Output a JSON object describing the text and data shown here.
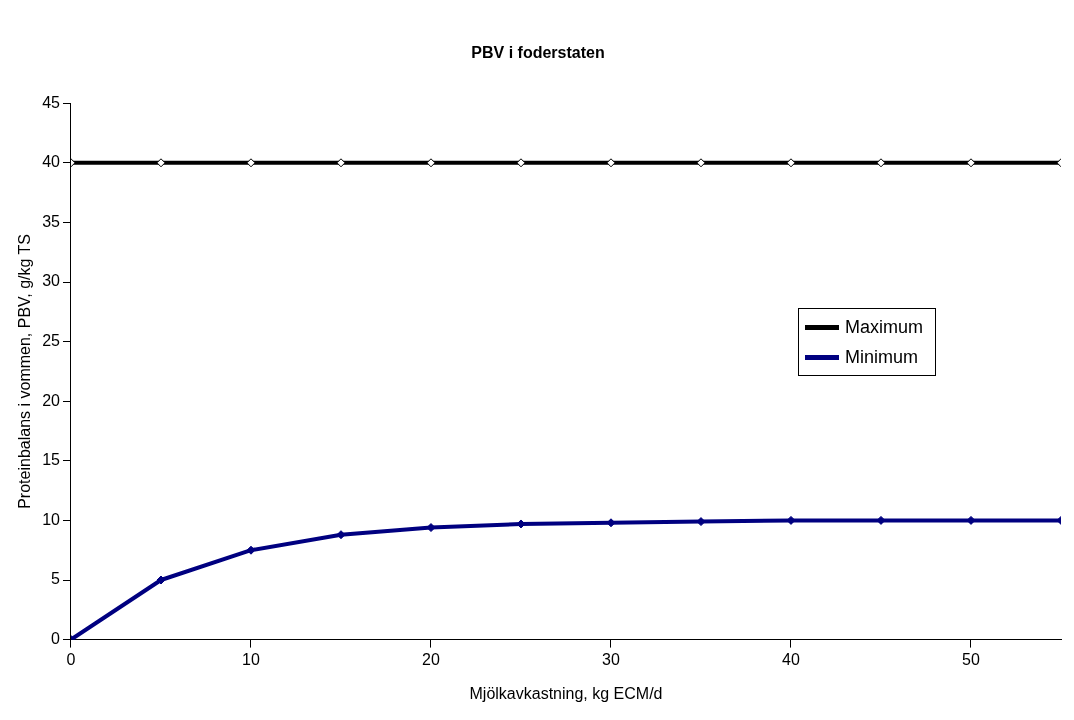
{
  "chart_data": {
    "type": "line",
    "title": "PBV i foderstaten",
    "xlabel": "Mjölkavkastning, kg ECM/d",
    "ylabel": "Proteinbalans i vommen, PBV, g/kg TS",
    "x": [
      0,
      5,
      10,
      15,
      20,
      25,
      30,
      35,
      40,
      45,
      50,
      55
    ],
    "series": [
      {
        "name": "Maximum",
        "color": "#000000",
        "values": [
          40,
          40,
          40,
          40,
          40,
          40,
          40,
          40,
          40,
          40,
          40,
          40
        ]
      },
      {
        "name": "Minimum",
        "color": "#000080",
        "values": [
          0,
          5,
          7.5,
          8.8,
          9.4,
          9.7,
          9.8,
          9.9,
          10,
          10,
          10,
          10
        ]
      }
    ],
    "xlim": [
      0,
      55
    ],
    "xticks": [
      0,
      10,
      20,
      30,
      40,
      50
    ],
    "ylim": [
      0,
      45
    ],
    "yticks": [
      0,
      5,
      10,
      15,
      20,
      25,
      30,
      35,
      40,
      45
    ],
    "grid": false,
    "legend": "right",
    "marker": "diamond",
    "line_style": "solid"
  }
}
